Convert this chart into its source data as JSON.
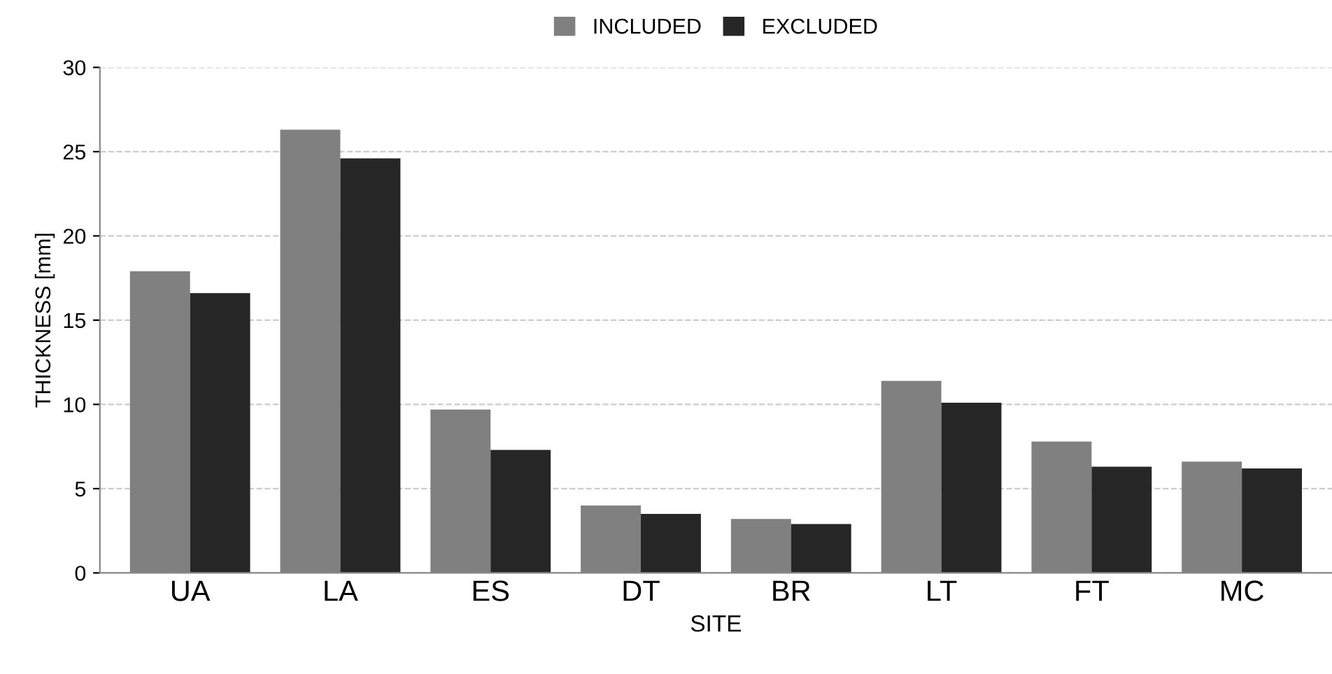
{
  "chart_data": {
    "type": "bar",
    "xlabel": "SITE",
    "ylabel": "THICKNESS [mm]",
    "categories": [
      "UA",
      "LA",
      "ES",
      "DT",
      "BR",
      "LT",
      "FT",
      "MC"
    ],
    "series": [
      {
        "name": "INCLUDED",
        "color": "#808080",
        "values": [
          17.9,
          26.3,
          9.7,
          4.0,
          3.2,
          11.4,
          7.8,
          6.6
        ]
      },
      {
        "name": "EXCLUDED",
        "color": "#262626",
        "values": [
          16.6,
          24.6,
          7.3,
          3.5,
          2.9,
          10.1,
          6.3,
          6.2
        ]
      }
    ],
    "ylim": [
      0,
      30
    ],
    "yticks": [
      0,
      5,
      10,
      15,
      20,
      25,
      30
    ],
    "grid": "y",
    "legend": "top"
  }
}
